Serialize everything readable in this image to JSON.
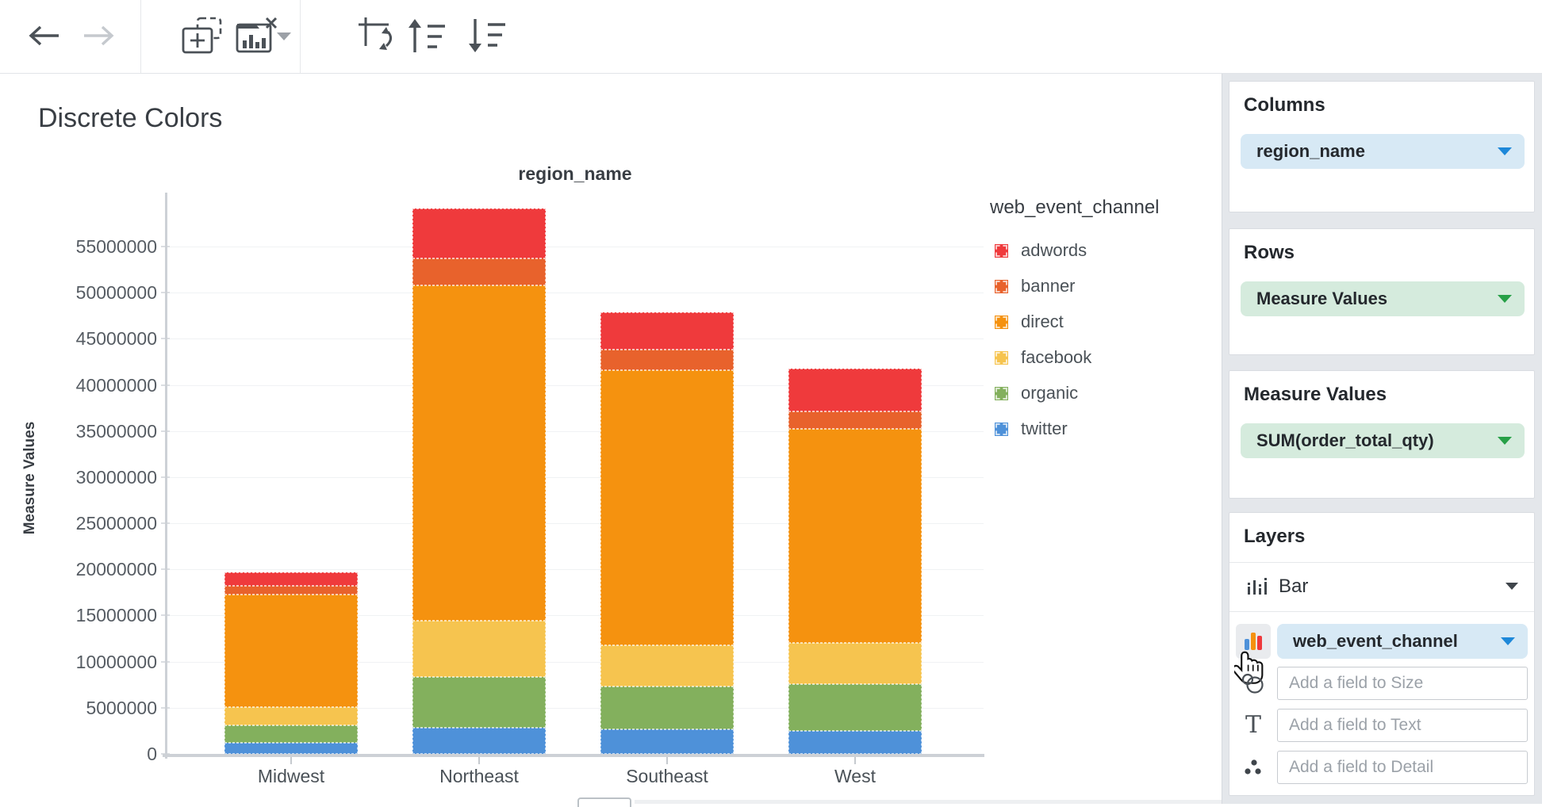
{
  "toolbar": {
    "icons": [
      "back",
      "forward",
      "add-chart",
      "remove-chart",
      "dropdown",
      "swap-axes",
      "sort-ascending",
      "sort-descending"
    ]
  },
  "chart": {
    "title": "Discrete Colors",
    "top_axis_title": "region_name",
    "y_axis_title": "Measure Values"
  },
  "legend": {
    "title": "web_event_channel"
  },
  "chart_data": {
    "type": "bar",
    "stacked": true,
    "title": "Discrete Colors",
    "xlabel": "region_name",
    "ylabel": "Measure Values",
    "categories": [
      "Midwest",
      "Northeast",
      "Southeast",
      "West"
    ],
    "series": [
      {
        "name": "adwords",
        "color": "#ef3a3c",
        "values": [
          1500000,
          5400000,
          4100000,
          4700000
        ]
      },
      {
        "name": "banner",
        "color": "#e8622c",
        "values": [
          900000,
          2900000,
          2200000,
          1900000
        ]
      },
      {
        "name": "direct",
        "color": "#f5920f",
        "values": [
          12200000,
          36400000,
          29800000,
          23200000
        ]
      },
      {
        "name": "facebook",
        "color": "#f6c44f",
        "values": [
          2000000,
          6100000,
          4500000,
          4400000
        ]
      },
      {
        "name": "organic",
        "color": "#83b05d",
        "values": [
          1900000,
          5500000,
          4600000,
          5100000
        ]
      },
      {
        "name": "twitter",
        "color": "#4e91d9",
        "values": [
          1200000,
          2800000,
          2700000,
          2500000
        ]
      }
    ],
    "y_ticks": [
      0,
      5000000,
      10000000,
      15000000,
      20000000,
      25000000,
      30000000,
      35000000,
      40000000,
      45000000,
      50000000,
      55000000
    ],
    "ylim": [
      0,
      60800000
    ],
    "grid": true,
    "legend_position": "right"
  },
  "sidebar": {
    "columns": {
      "header": "Columns",
      "pill": "region_name"
    },
    "rows": {
      "header": "Rows",
      "pill": "Measure Values"
    },
    "measure_values": {
      "header": "Measure Values",
      "pill": "SUM(order_total_qty)"
    },
    "layers": {
      "header": "Layers",
      "layer_type": "Bar",
      "color_field": "web_event_channel",
      "size_placeholder": "Add a field to Size",
      "text_placeholder": "Add a field to Text",
      "detail_placeholder": "Add a field to Detail"
    }
  }
}
